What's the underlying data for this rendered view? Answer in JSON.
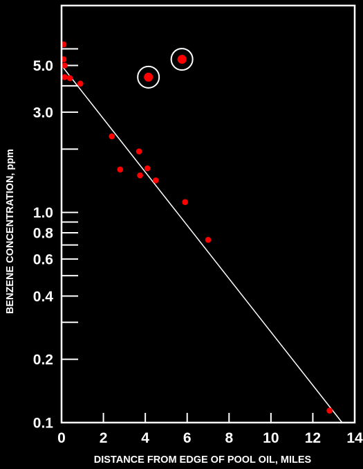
{
  "chart_data": {
    "type": "scatter",
    "title": "",
    "xlabel": "DISTANCE FROM EDGE OF POOL OIL, MILES",
    "ylabel": "BENZENE CONCENTRATION, ppm",
    "xlim": [
      0,
      14
    ],
    "ylim": [
      0.1,
      10
    ],
    "yscale": "log",
    "grid": false,
    "legend": "none",
    "x_ticks": [
      0,
      2,
      4,
      6,
      8,
      10,
      12,
      14
    ],
    "x_tick_labels": [
      "0",
      "2",
      "4",
      "6",
      "8",
      "10",
      "12",
      "14"
    ],
    "y_ticks_labeled": [
      0.1,
      0.2,
      0.4,
      0.6,
      0.8,
      1.0,
      3.0,
      5.0
    ],
    "y_tick_labels": [
      "0.1",
      "0.2",
      "0.4",
      "0.6",
      "0.8",
      "1.0",
      "3.0",
      "5.0"
    ],
    "y_ticks_minor": [
      0.3,
      0.5,
      0.7,
      0.9,
      2,
      4,
      6
    ],
    "series": [
      {
        "points": [
          [
            0.1,
            6.3
          ],
          [
            0.1,
            5.35
          ],
          [
            0.15,
            5.0
          ],
          [
            0.15,
            4.4
          ],
          [
            0.4,
            4.35
          ],
          [
            0.9,
            4.1
          ],
          [
            2.4,
            2.3
          ],
          [
            2.8,
            1.6
          ],
          [
            3.7,
            1.95
          ],
          [
            3.75,
            1.5
          ],
          [
            4.1,
            1.62
          ],
          [
            4.5,
            1.42
          ],
          [
            5.9,
            1.12
          ],
          [
            7.0,
            0.74
          ],
          [
            12.8,
            0.114
          ]
        ]
      },
      {
        "circled": true,
        "points": [
          [
            4.15,
            4.4
          ],
          [
            5.75,
            5.35
          ]
        ]
      }
    ],
    "fit_line": {
      "from": [
        0,
        5.0
      ],
      "to": [
        13.4,
        0.1
      ]
    },
    "colors": {
      "background": "#000000",
      "axes": "#ffffff",
      "points": "#ff0000",
      "fit_line": "#ffffff",
      "text": "#ffffff"
    }
  }
}
